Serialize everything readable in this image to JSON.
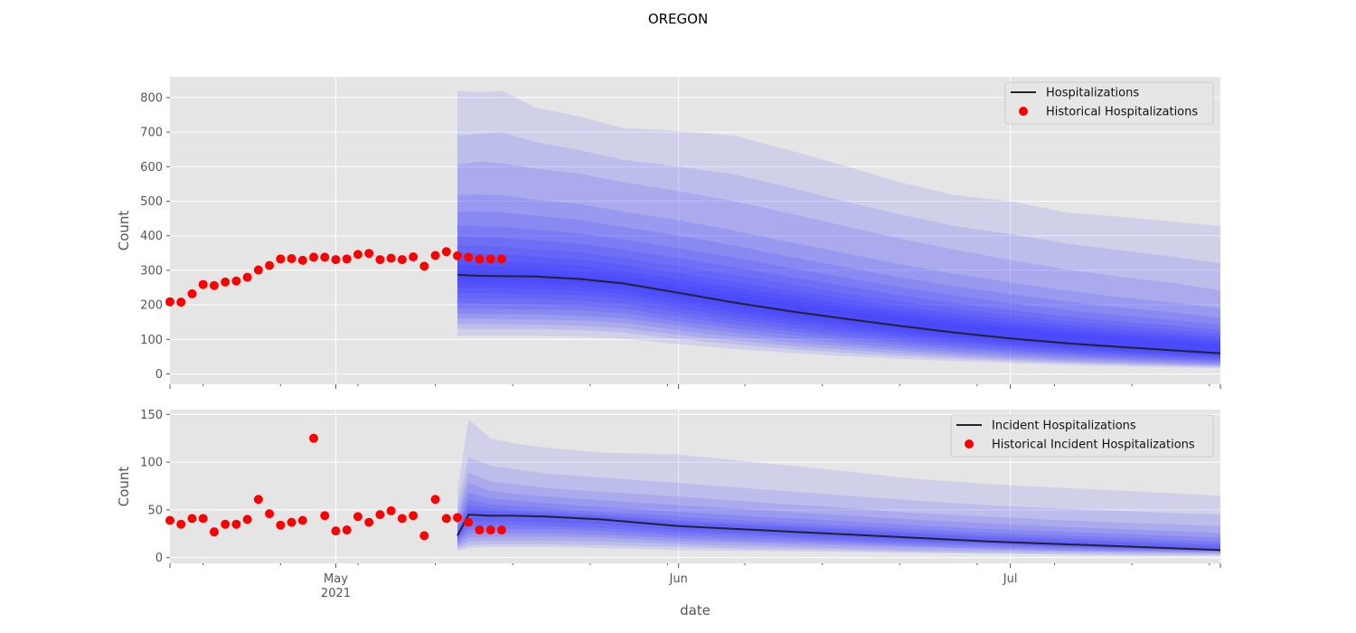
{
  "title": "OREGON",
  "xlabel": "date",
  "colors": {
    "axes_bg": "#e5e5e5",
    "grid": "#ffffff",
    "band": "#3b3bff",
    "median_line": "#222233",
    "historical": "#ff0000"
  },
  "x_ticks": [
    {
      "date": "2021-05-01",
      "label": "May",
      "sublabel": "2021"
    },
    {
      "date": "2021-06-01",
      "label": "Jun",
      "sublabel": ""
    },
    {
      "date": "2021-07-01",
      "label": "Jul",
      "sublabel": ""
    }
  ],
  "chart_data": [
    {
      "type": "line",
      "name": "hospitalizations",
      "ylabel": "Count",
      "xlim": [
        "2021-04-16",
        "2021-07-20"
      ],
      "ylim": [
        -30,
        860
      ],
      "yticks": [
        0,
        100,
        200,
        300,
        400,
        500,
        600,
        700,
        800
      ],
      "grid": true,
      "legend_position": "top-right",
      "legend": {
        "line_label": "Hospitalizations",
        "scatter_label": "Historical Hospitalizations"
      },
      "historical": {
        "dates": [
          "2021-04-16",
          "2021-04-17",
          "2021-04-18",
          "2021-04-19",
          "2021-04-20",
          "2021-04-21",
          "2021-04-22",
          "2021-04-23",
          "2021-04-24",
          "2021-04-25",
          "2021-04-26",
          "2021-04-27",
          "2021-04-28",
          "2021-04-29",
          "2021-04-30",
          "2021-05-01",
          "2021-05-02",
          "2021-05-03",
          "2021-05-04",
          "2021-05-05",
          "2021-05-06",
          "2021-05-07",
          "2021-05-08",
          "2021-05-09",
          "2021-05-10",
          "2021-05-11",
          "2021-05-12",
          "2021-05-13",
          "2021-05-14",
          "2021-05-15",
          "2021-05-16"
        ],
        "values": [
          209,
          208,
          232,
          259,
          256,
          266,
          269,
          280,
          301,
          314,
          333,
          334,
          329,
          338,
          338,
          331,
          333,
          346,
          349,
          331,
          335,
          331,
          339,
          312,
          343,
          354,
          342,
          338,
          333,
          333,
          333
        ]
      },
      "forecast": {
        "dates": [
          "2021-05-12",
          "2021-05-14",
          "2021-05-16",
          "2021-05-19",
          "2021-05-23",
          "2021-05-27",
          "2021-06-01",
          "2021-06-06",
          "2021-06-11",
          "2021-06-16",
          "2021-06-21",
          "2021-06-26",
          "2021-07-01",
          "2021-07-06",
          "2021-07-11",
          "2021-07-16",
          "2021-07-20"
        ],
        "median": [
          287,
          284,
          283,
          282,
          275,
          262,
          235,
          207,
          182,
          160,
          139,
          120,
          103,
          89,
          78,
          68,
          60
        ],
        "bands": [
          {
            "lower": [
              110,
              110,
              110,
              110,
              108,
              102,
              86,
              73,
              61,
              52,
              44,
              37,
              31,
              26,
              22,
              19,
              16
            ],
            "upper": [
              820,
              815,
              820,
              772,
              745,
              712,
              703,
              690,
              648,
              603,
              555,
              518,
              500,
              468,
              455,
              440,
              428
            ]
          },
          {
            "lower": [
              130,
              130,
              130,
              130,
              127,
              120,
              101,
              86,
              72,
              61,
              52,
              44,
              37,
              31,
              27,
              23,
              20
            ],
            "upper": [
              690,
              695,
              700,
              672,
              648,
              620,
              600,
              578,
              540,
              500,
              462,
              428,
              405,
              378,
              358,
              338,
              320
            ]
          },
          {
            "lower": [
              145,
              145,
              144,
              143,
              140,
              133,
              113,
              97,
              82,
              70,
              59,
              50,
              42,
              35,
              30,
              26,
              23
            ],
            "upper": [
              605,
              615,
              610,
              595,
              580,
              555,
              530,
              500,
              465,
              428,
              392,
              360,
              330,
              303,
              281,
              262,
              242
            ]
          },
          {
            "lower": [
              160,
              160,
              159,
              158,
              155,
              148,
              126,
              108,
              92,
              79,
              67,
              57,
              48,
              40,
              35,
              30,
              26
            ],
            "upper": [
              518,
              520,
              518,
              505,
              492,
              470,
              445,
              415,
              382,
              350,
              318,
              290,
              265,
              242,
              222,
              206,
              190
            ]
          },
          {
            "lower": [
              175,
              174,
              173,
              172,
              169,
              162,
              139,
              120,
              103,
              88,
              75,
              64,
              54,
              46,
              40,
              34,
              30
            ],
            "upper": [
              470,
              470,
              468,
              458,
              446,
              426,
              400,
              372,
              340,
              310,
              280,
              254,
              231,
              210,
              192,
              177,
              162
            ]
          },
          {
            "lower": [
              190,
              189,
              188,
              187,
              184,
              176,
              152,
              132,
              114,
              98,
              84,
              72,
              61,
              52,
              45,
              39,
              34
            ],
            "upper": [
              430,
              428,
              426,
              418,
              407,
              389,
              364,
              337,
              307,
              278,
              251,
              227,
              205,
              185,
              169,
              155,
              142
            ]
          },
          {
            "lower": [
              205,
              204,
              203,
              202,
              198,
              190,
              165,
              143,
              124,
              107,
              92,
              79,
              67,
              58,
              50,
              43,
              38
            ],
            "upper": [
              398,
              396,
              394,
              387,
              377,
              360,
              335,
              309,
              281,
              254,
              228,
              205,
              185,
              167,
              152,
              139,
              127
            ]
          },
          {
            "lower": [
              220,
              219,
              218,
              217,
              213,
              204,
              178,
              155,
              134,
              116,
              100,
              86,
              74,
              63,
              55,
              48,
              42
            ],
            "upper": [
              372,
              370,
              368,
              361,
              352,
              336,
              311,
              286,
              260,
              234,
              210,
              189,
              170,
              153,
              139,
              127,
              116
            ]
          },
          {
            "lower": [
              235,
              234,
              233,
              232,
              228,
              218,
              191,
              166,
              144,
              125,
              108,
              93,
              80,
              69,
              60,
              52,
              46
            ],
            "upper": [
              350,
              348,
              346,
              340,
              331,
              316,
              291,
              267,
              242,
              218,
              195,
              175,
              157,
              142,
              128,
              117,
              107
            ]
          },
          {
            "lower": [
              250,
              249,
              248,
              247,
              242,
              232,
              204,
              178,
              155,
              134,
              116,
              100,
              86,
              74,
              65,
              56,
              50
            ],
            "upper": [
              330,
              328,
              326,
              321,
              313,
              298,
              274,
              251,
              227,
              204,
              182,
              163,
              146,
              132,
              119,
              108,
              99
            ]
          },
          {
            "lower": [
              262,
              261,
              260,
              259,
              254,
              244,
              215,
              189,
              164,
              143,
              124,
              107,
              92,
              80,
              70,
              61,
              54
            ],
            "upper": [
              314,
              312,
              310,
              305,
              297,
              283,
              259,
              237,
              214,
              192,
              171,
              153,
              137,
              123,
              111,
              101,
              92
            ]
          },
          {
            "lower": [
              274,
              273,
              272,
              271,
              266,
              255,
              226,
              199,
              173,
              151,
              131,
              113,
              97,
              84,
              74,
              64,
              57
            ],
            "upper": [
              300,
              298,
              296,
              292,
              284,
              270,
              246,
              224,
              202,
              181,
              161,
              144,
              129,
              116,
              104,
              94,
              86
            ]
          }
        ]
      }
    },
    {
      "type": "line",
      "name": "incident_hospitalizations",
      "ylabel": "Count",
      "xlim": [
        "2021-04-16",
        "2021-07-20"
      ],
      "ylim": [
        -6,
        155
      ],
      "yticks": [
        0,
        50,
        100,
        150
      ],
      "grid": true,
      "legend_position": "top-right",
      "legend": {
        "line_label": "Incident Hospitalizations",
        "scatter_label": "Historical Incident Hospitalizations"
      },
      "historical": {
        "dates": [
          "2021-04-16",
          "2021-04-17",
          "2021-04-18",
          "2021-04-19",
          "2021-04-20",
          "2021-04-21",
          "2021-04-22",
          "2021-04-23",
          "2021-04-24",
          "2021-04-25",
          "2021-04-26",
          "2021-04-27",
          "2021-04-28",
          "2021-04-29",
          "2021-04-30",
          "2021-05-01",
          "2021-05-02",
          "2021-05-03",
          "2021-05-04",
          "2021-05-05",
          "2021-05-06",
          "2021-05-07",
          "2021-05-08",
          "2021-05-09",
          "2021-05-10",
          "2021-05-11",
          "2021-05-12",
          "2021-05-13",
          "2021-05-14",
          "2021-05-15",
          "2021-05-16"
        ],
        "values": [
          39,
          35,
          41,
          41,
          27,
          35,
          35,
          40,
          61,
          46,
          34,
          37,
          39,
          125,
          44,
          28,
          29,
          43,
          37,
          45,
          49,
          41,
          44,
          23,
          61,
          41,
          42,
          37,
          29,
          29,
          29
        ]
      },
      "forecast": {
        "dates": [
          "2021-05-12",
          "2021-05-13",
          "2021-05-15",
          "2021-05-17",
          "2021-05-20",
          "2021-05-25",
          "2021-06-01",
          "2021-06-08",
          "2021-06-15",
          "2021-06-22",
          "2021-06-29",
          "2021-07-06",
          "2021-07-13",
          "2021-07-20"
        ],
        "median": [
          23,
          45,
          44,
          44,
          43,
          40,
          33,
          29,
          25,
          21,
          17,
          14,
          11,
          8
        ],
        "bands": [
          {
            "lower": [
              7,
              10,
              11,
              11,
              11,
              10,
              8,
              7,
              6,
              5,
              4,
              3,
              2,
              2
            ],
            "upper": [
              70,
              145,
              125,
              120,
              115,
              110,
              108,
              100,
              92,
              83,
              77,
              73,
              69,
              65
            ]
          },
          {
            "lower": [
              9,
              13,
              14,
              14,
              14,
              13,
              11,
              9,
              8,
              6,
              5,
              4,
              3,
              3
            ],
            "upper": [
              55,
              105,
              96,
              93,
              88,
              84,
              78,
              72,
              66,
              60,
              55,
              51,
              48,
              45
            ]
          },
          {
            "lower": [
              11,
              17,
              18,
              18,
              18,
              17,
              14,
              12,
              10,
              8,
              7,
              6,
              5,
              4
            ],
            "upper": [
              46,
              89,
              80,
              77,
              73,
              69,
              64,
              58,
              53,
              47,
              43,
              39,
              36,
              33
            ]
          },
          {
            "lower": [
              13,
              21,
              22,
              22,
              22,
              21,
              17,
              15,
              13,
              11,
              9,
              7,
              6,
              5
            ],
            "upper": [
              40,
              78,
              70,
              67,
              64,
              60,
              55,
              50,
              45,
              40,
              36,
              32,
              29,
              26
            ]
          },
          {
            "lower": [
              15,
              25,
              26,
              26,
              26,
              24,
              20,
              17,
              15,
              12,
              10,
              8,
              7,
              6
            ],
            "upper": [
              35,
              68,
              62,
              60,
              57,
              53,
              48,
              43,
              39,
              34,
              30,
              27,
              24,
              21
            ]
          },
          {
            "lower": [
              17,
              29,
              30,
              30,
              30,
              28,
              23,
              20,
              17,
              14,
              12,
              10,
              8,
              7
            ],
            "upper": [
              31,
              61,
              56,
              54,
              52,
              48,
              43,
              38,
              34,
              30,
              26,
              23,
              20,
              17
            ]
          },
          {
            "lower": [
              19,
              33,
              34,
              34,
              33,
              31,
              26,
              23,
              19,
              16,
              14,
              11,
              9,
              7
            ],
            "upper": [
              28,
              55,
              52,
              50,
              48,
              45,
              39,
              35,
              31,
              27,
              23,
              20,
              17,
              14
            ]
          },
          {
            "lower": [
              21,
              38,
              38,
              38,
              37,
              35,
              29,
              25,
              22,
              18,
              15,
              12,
              10,
              8
            ],
            "upper": [
              26,
              51,
              49,
              48,
              46,
              43,
              37,
              33,
              29,
              25,
              21,
              18,
              15,
              12
            ]
          }
        ]
      }
    }
  ]
}
